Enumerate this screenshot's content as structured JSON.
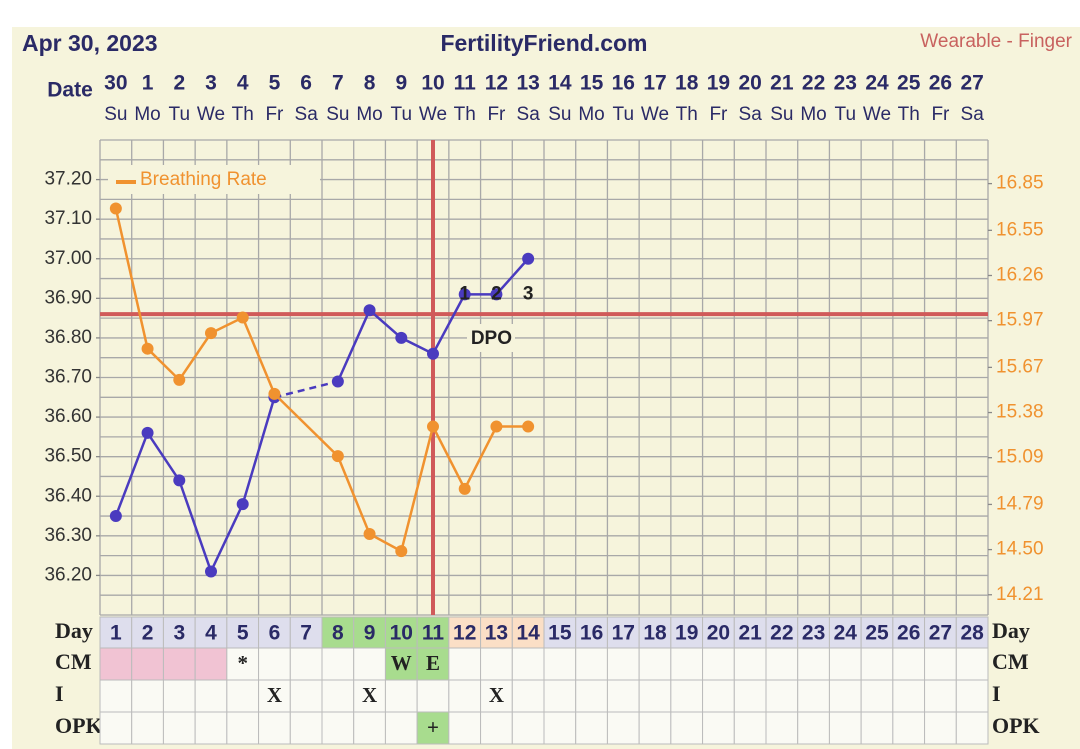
{
  "header": {
    "date": "Apr 30, 2023",
    "site": "FertilityFriend.com",
    "source": "Wearable - Finger"
  },
  "chart_data": {
    "type": "line",
    "x_label": "Date",
    "categories": [
      "30",
      "1",
      "2",
      "3",
      "4",
      "5",
      "6",
      "7",
      "8",
      "9",
      "10",
      "11",
      "12",
      "13",
      "14",
      "15",
      "16",
      "17",
      "18",
      "19",
      "20",
      "21",
      "22",
      "23",
      "24",
      "25",
      "26",
      "27"
    ],
    "weekdays": [
      "Su",
      "Mo",
      "Tu",
      "We",
      "Th",
      "Fr",
      "Sa",
      "Su",
      "Mo",
      "Tu",
      "We",
      "Th",
      "Fr",
      "Sa",
      "Su",
      "Mo",
      "Tu",
      "We",
      "Th",
      "Fr",
      "Sa",
      "Su",
      "Mo",
      "Tu",
      "We",
      "Th",
      "Fr",
      "Sa"
    ],
    "ylim": [
      36.1,
      37.3
    ],
    "yticks": [
      {
        "value": 37.2,
        "label": "37.20"
      },
      {
        "value": 37.1,
        "label": "37.10"
      },
      {
        "value": 37.0,
        "label": "37.00"
      },
      {
        "value": 36.9,
        "label": "36.90"
      },
      {
        "value": 36.8,
        "label": "36.80"
      },
      {
        "value": 36.7,
        "label": "36.70"
      },
      {
        "value": 36.6,
        "label": "36.60"
      },
      {
        "value": 36.5,
        "label": "36.50"
      },
      {
        "value": 36.4,
        "label": "36.40"
      },
      {
        "value": 36.3,
        "label": "36.30"
      },
      {
        "value": 36.2,
        "label": "36.20"
      }
    ],
    "y2lim": [
      14.08,
      17.13
    ],
    "y2ticks": [
      16.85,
      16.55,
      16.26,
      15.97,
      15.67,
      15.38,
      15.09,
      14.79,
      {
        "value": 14.5,
        "label": "14.50"
      },
      14.21
    ],
    "grid": true,
    "legend_corner": "top-left",
    "series": [
      {
        "color": "#4a3bbf",
        "connect_gaps": "dashed",
        "values": [
          36.35,
          36.56,
          36.44,
          36.21,
          36.38,
          36.65,
          null,
          36.69,
          36.87,
          36.8,
          36.76,
          36.91,
          36.91,
          37.0,
          null,
          null,
          null,
          null,
          null,
          null,
          null,
          null,
          null,
          null,
          null,
          null,
          null,
          null
        ]
      },
      {
        "name": "Breathing Rate",
        "color": "#f0922f",
        "axis": "y2",
        "connect_gaps": "solid",
        "values": [
          16.69,
          15.79,
          15.59,
          15.89,
          15.99,
          15.5,
          null,
          15.1,
          14.6,
          14.49,
          15.29,
          14.89,
          15.29,
          15.29,
          null,
          null,
          null,
          null,
          null,
          null,
          null,
          null,
          null,
          null,
          null,
          null,
          null,
          null
        ]
      }
    ],
    "coverline": 36.86,
    "coverline_color": "#d05a5a",
    "ovulation_day": 11,
    "dpo_marks": [
      "1",
      "2",
      "3"
    ],
    "dpo_label": "DPO"
  },
  "table": {
    "rows": [
      {
        "label": "Day",
        "cells": [
          1,
          2,
          3,
          4,
          5,
          6,
          7,
          8,
          9,
          10,
          11,
          12,
          13,
          14,
          15,
          16,
          17,
          18,
          19,
          20,
          21,
          22,
          23,
          24,
          25,
          26,
          27,
          28
        ],
        "colors": [
          "#dedeed",
          "#dedeed",
          "#dedeed",
          "#dedeed",
          "#dedeed",
          "#dedeed",
          "#dedeed",
          "#a8dc8e",
          "#a8dc8e",
          "#a8dc8e",
          "#a8dc8e",
          "#fbdfc6",
          "#fbdfc6",
          "#fbdfc6",
          "#dedeed",
          "#dedeed",
          "#dedeed",
          "#dedeed",
          "#dedeed",
          "#dedeed",
          "#dedeed",
          "#dedeed",
          "#dedeed",
          "#dedeed",
          "#dedeed",
          "#dedeed",
          "#dedeed",
          "#dedeed"
        ]
      },
      {
        "label": "CM",
        "cells": [
          null,
          null,
          null,
          null,
          "*",
          null,
          null,
          null,
          null,
          "W",
          "E",
          null,
          null,
          null,
          null,
          null,
          null,
          null,
          null,
          null,
          null,
          null,
          null,
          null,
          null,
          null,
          null,
          null
        ],
        "colors": [
          "#f1c3d3",
          "#f1c3d3",
          "#f1c3d3",
          "#f1c3d3",
          null,
          null,
          null,
          null,
          null,
          "#a8dc8e",
          "#a8dc8e",
          null,
          null,
          null,
          null,
          null,
          null,
          null,
          null,
          null,
          null,
          null,
          null,
          null,
          null,
          null,
          null,
          null
        ]
      },
      {
        "label": "I",
        "cells": [
          null,
          null,
          null,
          null,
          null,
          "X",
          null,
          null,
          "X",
          null,
          null,
          null,
          "X",
          null,
          null,
          null,
          null,
          null,
          null,
          null,
          null,
          null,
          null,
          null,
          null,
          null,
          null,
          null
        ],
        "colors": [
          null,
          null,
          null,
          null,
          null,
          null,
          null,
          null,
          null,
          null,
          null,
          null,
          null,
          null,
          null,
          null,
          null,
          null,
          null,
          null,
          null,
          null,
          null,
          null,
          null,
          null,
          null,
          null
        ]
      },
      {
        "label": "OPK",
        "cells": [
          null,
          null,
          null,
          null,
          null,
          null,
          null,
          null,
          null,
          null,
          "+",
          null,
          null,
          null,
          null,
          null,
          null,
          null,
          null,
          null,
          null,
          null,
          null,
          null,
          null,
          null,
          null,
          null
        ],
        "colors": [
          null,
          null,
          null,
          null,
          null,
          null,
          null,
          null,
          null,
          null,
          "#a8dc8e",
          null,
          null,
          null,
          null,
          null,
          null,
          null,
          null,
          null,
          null,
          null,
          null,
          null,
          null,
          null,
          null,
          null
        ]
      }
    ]
  }
}
